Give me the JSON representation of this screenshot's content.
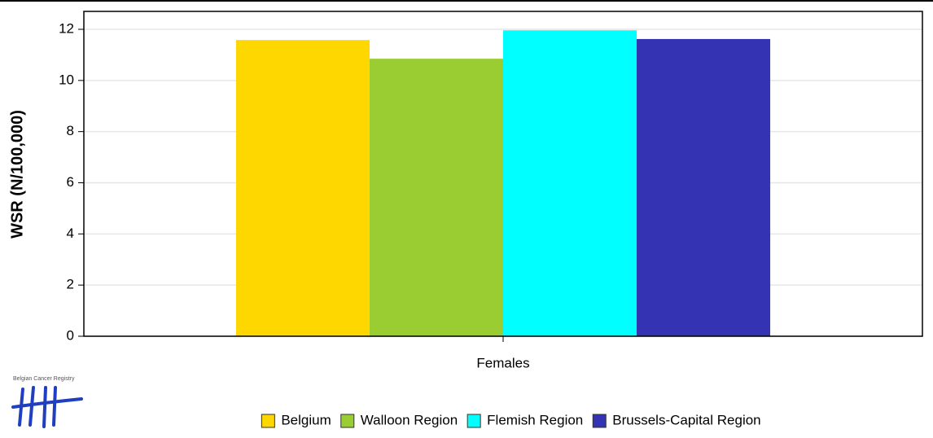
{
  "chart_data": {
    "type": "bar",
    "y_label": "WSR (N/100,000)",
    "categories": [
      "Females"
    ],
    "series": [
      {
        "name": "Belgium",
        "color": "#ffd700",
        "values": [
          11.58
        ]
      },
      {
        "name": "Walloon Region",
        "color": "#9acd32",
        "values": [
          10.85
        ]
      },
      {
        "name": "Flemish Region",
        "color": "#00ffff",
        "values": [
          11.96
        ]
      },
      {
        "name": "Brussels-Capital Region",
        "color": "#3333b3",
        "values": [
          11.62
        ]
      }
    ],
    "ylim": [
      0,
      12.7
    ],
    "yticks": [
      0,
      2,
      4,
      6,
      8,
      10,
      12
    ],
    "grid": true,
    "legend": "bottom"
  },
  "logo": {
    "text": "Belgian Cancer Registry"
  }
}
